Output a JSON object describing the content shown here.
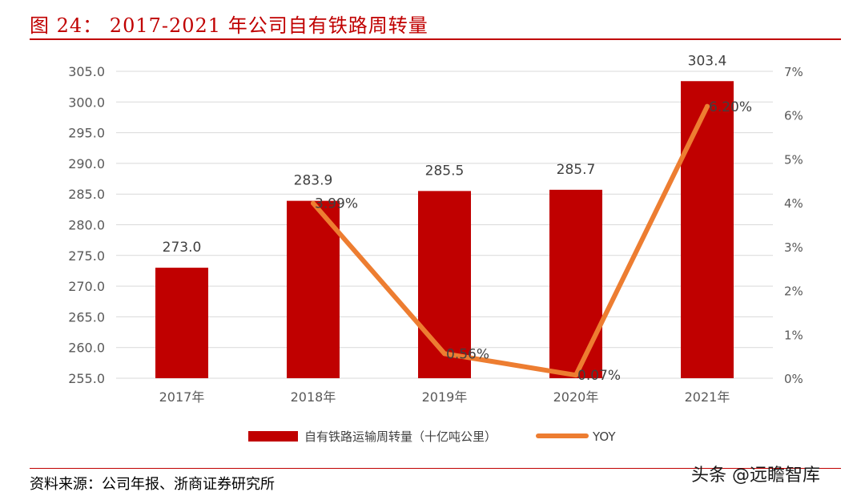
{
  "figure": {
    "title": "图 24： 2017-2021 年公司自有铁路周转量",
    "source": "资料来源：公司年报、浙商证券研究所",
    "watermark": "头条 @远瞻智库"
  },
  "colors": {
    "bar": "#c00000",
    "line": "#ed7d31",
    "title": "#c00000",
    "grid": "#d9d9d9"
  },
  "chart_data": {
    "type": "bar",
    "categories": [
      "2017年",
      "2018年",
      "2019年",
      "2020年",
      "2021年"
    ],
    "series": [
      {
        "name": "自有铁路运输周转量（十亿吨公里）",
        "chart": "bar",
        "axis": "left",
        "values": [
          273.0,
          283.9,
          285.5,
          285.7,
          303.4
        ],
        "labels": [
          "273.0",
          "283.9",
          "285.5",
          "285.7",
          "303.4"
        ]
      },
      {
        "name": "YOY",
        "chart": "line",
        "axis": "right",
        "values": [
          null,
          3.99,
          0.56,
          0.07,
          6.2
        ],
        "labels": [
          null,
          "3.99%",
          "0.56%",
          "0.07%",
          "6.20%"
        ]
      }
    ],
    "ylim_left": [
      255.0,
      305.0
    ],
    "yticks_left": [
      "255.0",
      "260.0",
      "265.0",
      "270.0",
      "275.0",
      "280.0",
      "285.0",
      "290.0",
      "295.0",
      "300.0",
      "305.0"
    ],
    "ylim_right": [
      0,
      7
    ],
    "yticks_right": [
      "0%",
      "1%",
      "2%",
      "3%",
      "4%",
      "5%",
      "6%",
      "7%"
    ],
    "grid": true,
    "legend_position": "bottom"
  }
}
